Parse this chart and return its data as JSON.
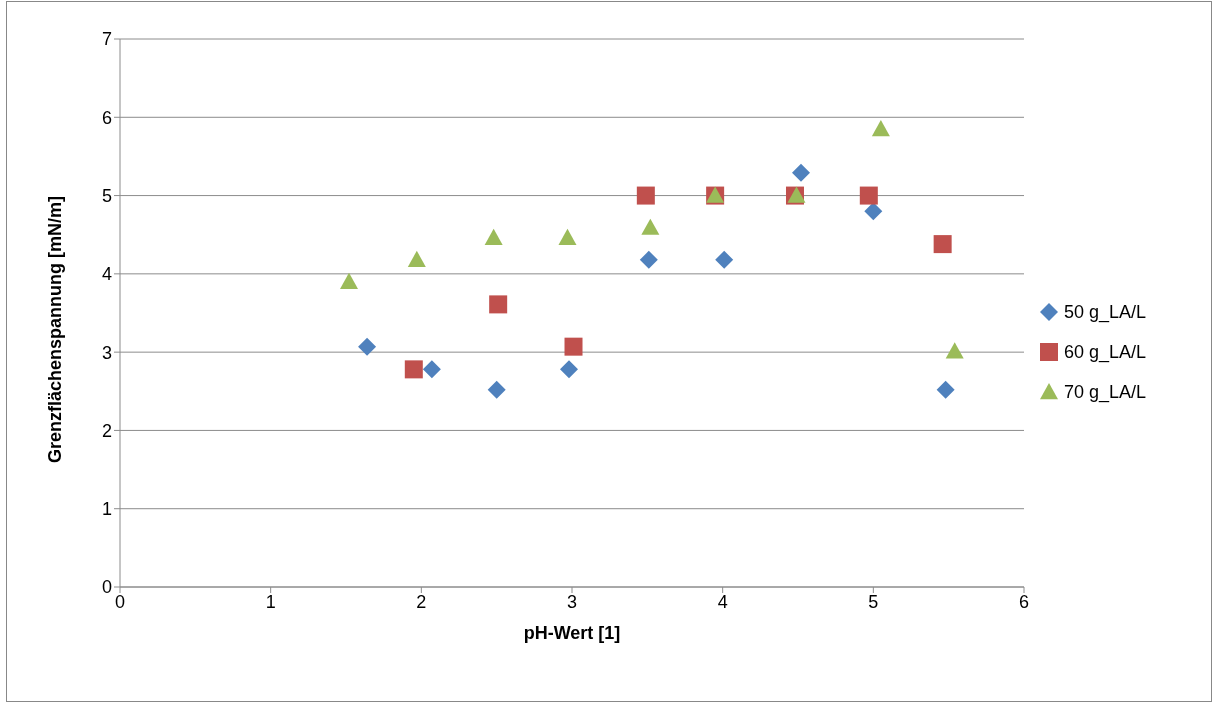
{
  "chart_data": {
    "type": "scatter",
    "xlabel": "pH-Wert [1]",
    "ylabel": "Grenzflächenspannung [mN/m]",
    "xlim": [
      0,
      6
    ],
    "xticks": [
      0,
      1,
      2,
      3,
      4,
      5,
      6
    ],
    "ylim": [
      0,
      7
    ],
    "yticks": [
      0,
      1,
      2,
      3,
      4,
      5,
      6,
      7
    ],
    "grid": "y",
    "legend": "right",
    "series": [
      {
        "name": "50 g_LA/L",
        "color": "#4f81bd",
        "marker": "diamond",
        "x": [
          1.64,
          2.07,
          2.5,
          2.98,
          3.51,
          4.01,
          4.52,
          5.0,
          5.48
        ],
        "values": [
          3.07,
          2.78,
          2.52,
          2.78,
          4.18,
          4.18,
          5.29,
          4.8,
          2.52
        ]
      },
      {
        "name": "60 g_LA/L",
        "color": "#c0504d",
        "marker": "square",
        "x": [
          1.95,
          2.51,
          3.01,
          3.49,
          3.95,
          4.48,
          4.97,
          5.46
        ],
        "values": [
          2.78,
          3.61,
          3.07,
          5.0,
          5.0,
          5.0,
          5.0,
          4.38
        ]
      },
      {
        "name": "70 g_LA/L",
        "color": "#9bbb59",
        "marker": "triangle",
        "x": [
          1.52,
          1.97,
          2.48,
          2.97,
          3.52,
          3.95,
          4.49,
          5.05,
          5.54
        ],
        "values": [
          3.9,
          4.18,
          4.46,
          4.46,
          4.59,
          5.0,
          5.0,
          5.85,
          3.01
        ]
      }
    ]
  }
}
